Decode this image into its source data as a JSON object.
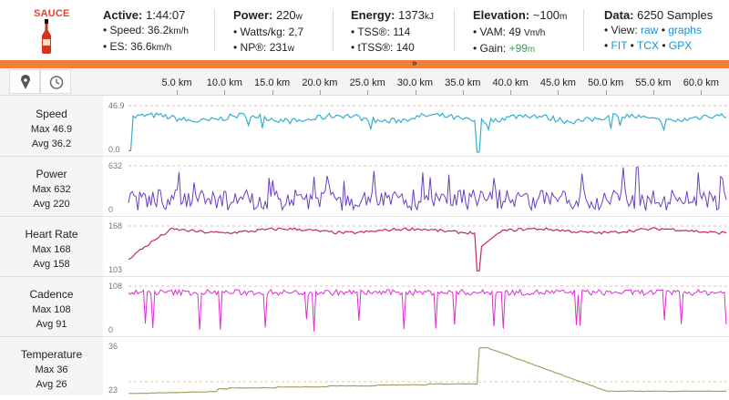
{
  "logo": {
    "text": "SAUCE"
  },
  "stats": {
    "active": {
      "label": "Active:",
      "value": "1:44:07",
      "speed_label": "• Speed:",
      "speed_value": "36.2",
      "speed_unit": "km/h",
      "es_label": "• ES:",
      "es_value": "36.6",
      "es_unit": "km/h"
    },
    "power": {
      "label": "Power:",
      "value": "220",
      "unit": "w",
      "wkg_label": "• Watts/kg:",
      "wkg_value": "2,7",
      "np_label": "• NP®:",
      "np_value": "231",
      "np_unit": "w"
    },
    "energy": {
      "label": "Energy:",
      "value": "1373",
      "unit": "kJ",
      "tss_label": "• TSS®:",
      "tss_value": "114",
      "ttss_label": "• tTSS®:",
      "ttss_value": "140"
    },
    "elevation": {
      "label": "Elevation:",
      "value": "~100",
      "unit": "m",
      "vam_label": "• VAM:",
      "vam_value": "49",
      "vam_unit": "Vm/h",
      "gain_label": "• Gain:",
      "gain_value": "+99",
      "gain_unit": "m"
    },
    "data": {
      "label": "Data:",
      "value": "6250 Samples",
      "view_label": "• View:",
      "view_raw": "raw",
      "view_dot": "•",
      "view_graphs": "graphs",
      "fit": "FIT",
      "tcx": "TCX",
      "gpx": "GPX",
      "dot": "•"
    }
  },
  "toolbar": {
    "pin_icon": "map-pin-icon",
    "clock_icon": "clock-icon"
  },
  "axis": {
    "ticks": [
      "5.0 km",
      "10.0 km",
      "15.0 km",
      "20.0 km",
      "25.0 km",
      "30.0 km",
      "35.0 km",
      "40.0 km",
      "45.0 km",
      "50.0 km",
      "55.0 km",
      "60.0 km"
    ]
  },
  "charts": [
    {
      "name": "Speed",
      "max_text": "Max 46.9",
      "avg_text": "Avg 36.2",
      "ymax_label": "46.9",
      "ymin_label": "0.0",
      "color": "#35aed1"
    },
    {
      "name": "Power",
      "max_text": "Max 632",
      "avg_text": "Avg 220",
      "ymax_label": "632",
      "ymin_label": "0",
      "color": "#6a3fc1"
    },
    {
      "name": "Heart Rate",
      "max_text": "Max 168",
      "avg_text": "Avg 158",
      "ymax_label": "168",
      "ymin_label": "103",
      "color": "#c42a5e"
    },
    {
      "name": "Cadence",
      "max_text": "Max 108",
      "avg_text": "Avg 91",
      "ymax_label": "108",
      "ymin_label": "0",
      "color": "#e02bd6"
    },
    {
      "name": "Temperature",
      "max_text": "Max 36",
      "avg_text": "Avg 26",
      "ymax_label": "36",
      "ymin_label": "23",
      "color": "#a8a060"
    }
  ]
}
